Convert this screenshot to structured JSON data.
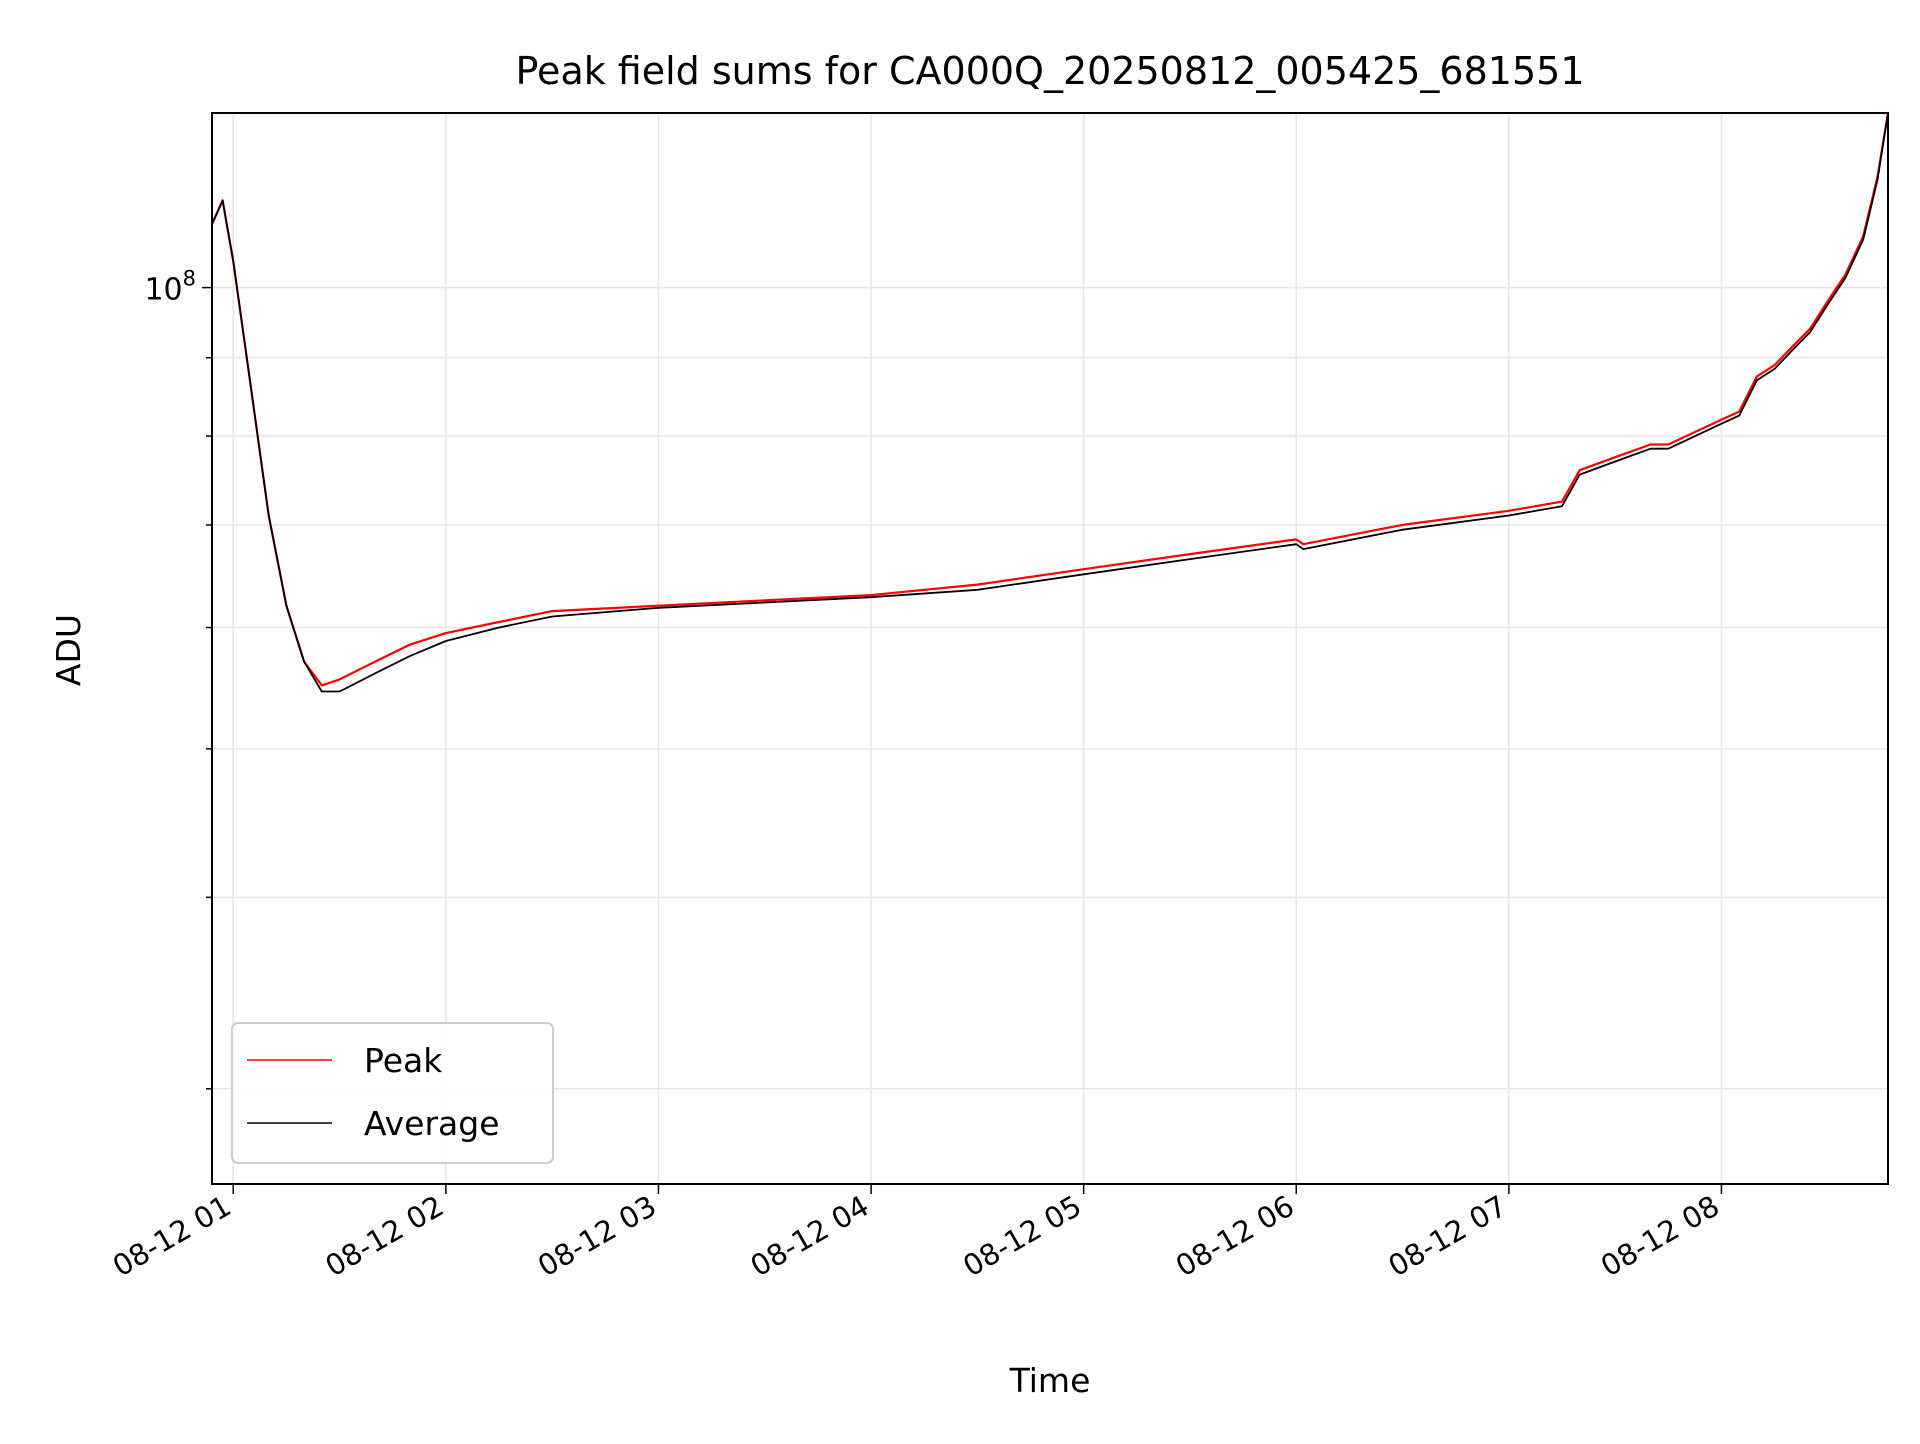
{
  "chart_data": {
    "type": "line",
    "title": "Peak field sums for CA000Q_20250812_005425_681551",
    "xlabel": "Time",
    "ylabel": "ADU",
    "x_scale": "time",
    "y_scale": "log",
    "x_range": [
      "2025-08-12 00:54",
      "2025-08-12 08:47"
    ],
    "ylim": [
      26000000,
      130000000
    ],
    "xticks": [
      "08-12 01",
      "08-12 02",
      "08-12 03",
      "08-12 04",
      "08-12 05",
      "08-12 06",
      "08-12 07",
      "08-12 08"
    ],
    "ytick_label": {
      "base": "10",
      "exp": "8"
    },
    "grid": true,
    "legend_position": "lower-left",
    "series": [
      {
        "name": "Peak",
        "color": "#ff0000",
        "x": [
          "2025-08-12 00:54",
          "2025-08-12 00:57",
          "2025-08-12 01:00",
          "2025-08-12 01:05",
          "2025-08-12 01:10",
          "2025-08-12 01:15",
          "2025-08-12 01:20",
          "2025-08-12 01:25",
          "2025-08-12 01:30",
          "2025-08-12 01:40",
          "2025-08-12 01:50",
          "2025-08-12 02:00",
          "2025-08-12 02:15",
          "2025-08-12 02:30",
          "2025-08-12 03:00",
          "2025-08-12 03:30",
          "2025-08-12 04:00",
          "2025-08-12 04:30",
          "2025-08-12 05:00",
          "2025-08-12 05:30",
          "2025-08-12 06:00",
          "2025-08-12 06:02",
          "2025-08-12 06:30",
          "2025-08-12 07:00",
          "2025-08-12 07:15",
          "2025-08-12 07:20",
          "2025-08-12 07:30",
          "2025-08-12 07:40",
          "2025-08-12 07:45",
          "2025-08-12 08:00",
          "2025-08-12 08:05",
          "2025-08-12 08:10",
          "2025-08-12 08:15",
          "2025-08-12 08:20",
          "2025-08-12 08:25",
          "2025-08-12 08:30",
          "2025-08-12 08:35",
          "2025-08-12 08:40",
          "2025-08-12 08:44",
          "2025-08-12 08:47"
        ],
        "y": [
          110000000,
          114000000,
          104000000,
          86000000,
          71000000,
          62000000,
          57000000,
          55000000,
          55500000,
          57000000,
          58500000,
          59500000,
          60500000,
          61500000,
          62000000,
          62500000,
          63000000,
          64000000,
          65500000,
          67000000,
          68500000,
          68000000,
          70000000,
          71500000,
          72500000,
          76000000,
          77500000,
          79000000,
          79000000,
          82000000,
          83000000,
          87500000,
          89000000,
          91500000,
          94000000,
          98000000,
          102000000,
          108000000,
          118000000,
          130000000
        ]
      },
      {
        "name": "Average",
        "color": "#000000",
        "x": [
          "2025-08-12 00:54",
          "2025-08-12 00:57",
          "2025-08-12 01:00",
          "2025-08-12 01:05",
          "2025-08-12 01:10",
          "2025-08-12 01:15",
          "2025-08-12 01:20",
          "2025-08-12 01:25",
          "2025-08-12 01:30",
          "2025-08-12 01:40",
          "2025-08-12 01:50",
          "2025-08-12 02:00",
          "2025-08-12 02:15",
          "2025-08-12 02:30",
          "2025-08-12 03:00",
          "2025-08-12 03:30",
          "2025-08-12 04:00",
          "2025-08-12 04:30",
          "2025-08-12 05:00",
          "2025-08-12 05:30",
          "2025-08-12 06:00",
          "2025-08-12 06:02",
          "2025-08-12 06:30",
          "2025-08-12 07:00",
          "2025-08-12 07:15",
          "2025-08-12 07:20",
          "2025-08-12 07:30",
          "2025-08-12 07:40",
          "2025-08-12 07:45",
          "2025-08-12 08:00",
          "2025-08-12 08:05",
          "2025-08-12 08:10",
          "2025-08-12 08:15",
          "2025-08-12 08:20",
          "2025-08-12 08:25",
          "2025-08-12 08:30",
          "2025-08-12 08:35",
          "2025-08-12 08:40",
          "2025-08-12 08:44",
          "2025-08-12 08:47"
        ],
        "y": [
          110000000,
          114000000,
          104000000,
          86000000,
          71000000,
          62000000,
          57000000,
          54500000,
          54500000,
          56000000,
          57500000,
          58800000,
          60000000,
          61000000,
          61800000,
          62300000,
          62800000,
          63500000,
          65000000,
          66500000,
          68000000,
          67500000,
          69500000,
          71000000,
          72000000,
          75500000,
          77000000,
          78500000,
          78500000,
          81500000,
          82500000,
          87000000,
          88500000,
          91000000,
          93500000,
          97500000,
          101500000,
          107500000,
          117500000,
          130000000
        ]
      }
    ]
  }
}
